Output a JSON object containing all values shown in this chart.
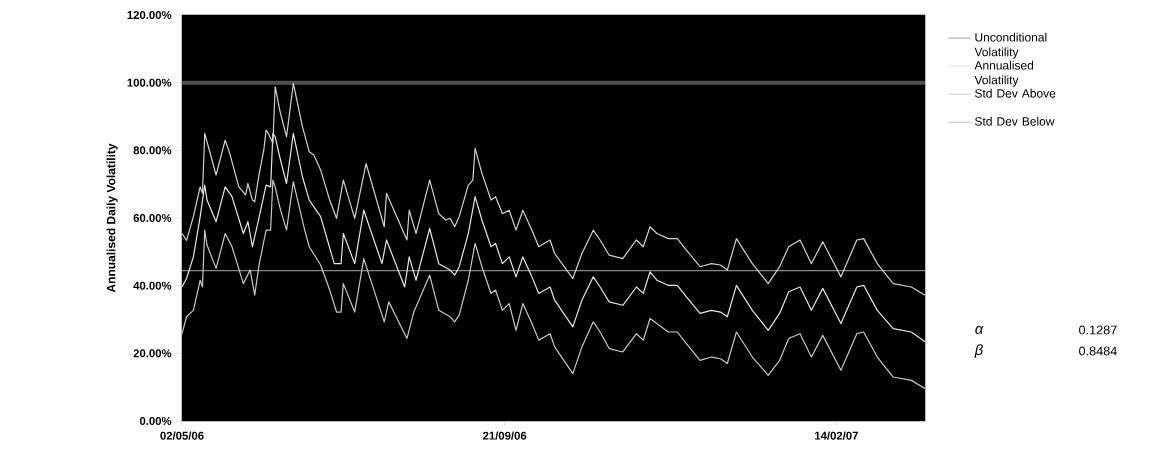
{
  "chart_data": {
    "type": "line",
    "ylabel": "Annualised Daily Volatility",
    "xlim": [
      "2006-05-02",
      "2007-03-25"
    ],
    "xticks": [
      {
        "value": "2006-05-02",
        "label": "02/05/06"
      },
      {
        "value": "2006-09-21",
        "label": "21/09/06"
      },
      {
        "value": "2007-02-14",
        "label": "14/02/07"
      }
    ],
    "ylim": [
      0,
      120
    ],
    "yticks": [
      {
        "value": 0,
        "label": "0.00%"
      },
      {
        "value": 20,
        "label": "20.00%"
      },
      {
        "value": 40,
        "label": "40.00%"
      },
      {
        "value": 60,
        "label": "60.00%"
      },
      {
        "value": 80,
        "label": "80.00%"
      },
      {
        "value": 100,
        "label": "100.00%"
      },
      {
        "value": 120,
        "label": "120.00%"
      }
    ],
    "ref_lines": [
      {
        "axis": "y",
        "value": 100,
        "color": "#505050"
      }
    ],
    "legend": "right",
    "marker": "none",
    "annotations": [
      "α",
      "0.1287",
      "β",
      "0.8484"
    ],
    "series": [
      {
        "name": "Unconditional Volatility",
        "color": "#b4b4b4",
        "x": [
          "2006-05-02",
          "2007-03-25"
        ],
        "values": [
          44.4,
          44.4
        ]
      },
      {
        "name": "Annualised Volatility",
        "color": "#e6e6e6",
        "x": [
          "2006-05-02",
          "2006-05-04",
          "2006-05-07",
          "2006-05-10",
          "2006-05-12",
          "2006-05-13",
          "2006-05-17",
          "2006-05-21",
          "2006-05-24",
          "2006-05-29",
          "2006-05-31",
          "2006-06-02",
          "2006-06-05",
          "2006-06-08",
          "2006-06-10",
          "2006-06-11",
          "2006-06-12",
          "2006-06-14",
          "2006-06-17",
          "2006-06-20",
          "2006-06-24",
          "2006-06-27",
          "2006-07-02",
          "2006-07-05",
          "2006-07-08",
          "2006-07-11",
          "2006-07-12",
          "2006-07-17",
          "2006-07-21",
          "2006-07-29",
          "2006-07-31",
          "2006-08-08",
          "2006-08-10",
          "2006-08-13",
          "2006-08-19",
          "2006-08-23",
          "2006-08-28",
          "2006-08-30",
          "2006-09-01",
          "2006-09-05",
          "2006-09-08",
          "2006-09-11",
          "2006-09-15",
          "2006-09-17",
          "2006-09-20",
          "2006-09-23",
          "2006-09-26",
          "2006-09-29",
          "2006-10-03",
          "2006-10-06",
          "2006-10-11",
          "2006-10-13",
          "2006-10-21",
          "2006-10-25",
          "2006-10-30",
          "2006-11-02",
          "2006-11-06",
          "2006-11-12",
          "2006-11-18",
          "2006-11-21",
          "2006-11-24",
          "2006-11-27",
          "2006-12-02",
          "2006-12-06",
          "2006-12-10",
          "2006-12-16",
          "2006-12-21",
          "2006-12-25",
          "2006-12-28",
          "2007-01-01",
          "2007-01-08",
          "2007-01-15",
          "2007-01-20",
          "2007-01-24",
          "2007-01-29",
          "2007-02-03",
          "2007-02-08",
          "2007-02-16",
          "2007-02-23",
          "2007-02-26",
          "2007-03-04",
          "2007-03-11",
          "2007-03-19",
          "2007-03-25"
        ],
        "values": [
          39.6,
          42.1,
          48.5,
          60.4,
          69.7,
          65.3,
          58.9,
          69.2,
          66.3,
          55.4,
          58.9,
          51.5,
          60.4,
          69.7,
          69.2,
          85.0,
          84.0,
          78.1,
          70.2,
          85.0,
          72.2,
          65.3,
          60.4,
          53.5,
          46.5,
          46.5,
          55.4,
          46.5,
          62.3,
          46.5,
          53.5,
          39.6,
          48.5,
          41.6,
          56.9,
          46.5,
          44.6,
          43.1,
          45.6,
          55.4,
          66.3,
          59.4,
          51.5,
          52.5,
          46.5,
          48.5,
          42.6,
          48.5,
          42.6,
          37.7,
          39.6,
          35.7,
          27.8,
          35.7,
          42.6,
          39.6,
          35.2,
          34.2,
          39.6,
          37.7,
          44.1,
          41.6,
          40.1,
          40.1,
          36.7,
          31.8,
          32.7,
          32.2,
          30.8,
          40.1,
          32.7,
          26.8,
          31.8,
          38.2,
          39.6,
          32.7,
          39.2,
          28.8,
          39.6,
          40.1,
          32.7,
          27.3,
          26.3,
          23.4
        ]
      },
      {
        "name": "Std Dev Above",
        "color": "#d2d2d2",
        "x": [
          "2006-05-02",
          "2006-05-04",
          "2006-05-07",
          "2006-05-10",
          "2006-05-11",
          "2006-05-12",
          "2006-05-14",
          "2006-05-17",
          "2006-05-21",
          "2006-05-23",
          "2006-05-27",
          "2006-05-30",
          "2006-05-31",
          "2006-06-02",
          "2006-06-03",
          "2006-06-05",
          "2006-06-07",
          "2006-06-08",
          "2006-06-09",
          "2006-06-11",
          "2006-06-12",
          "2006-06-14",
          "2006-06-17",
          "2006-06-20",
          "2006-06-24",
          "2006-06-27",
          "2006-06-29",
          "2006-07-02",
          "2006-07-06",
          "2006-07-09",
          "2006-07-12",
          "2006-07-17",
          "2006-07-22",
          "2006-07-30",
          "2006-07-31",
          "2006-08-09",
          "2006-08-10",
          "2006-08-13",
          "2006-08-19",
          "2006-08-23",
          "2006-08-26",
          "2006-08-28",
          "2006-08-30",
          "2006-09-01",
          "2006-09-05",
          "2006-09-07",
          "2006-09-08",
          "2006-09-11",
          "2006-09-15",
          "2006-09-17",
          "2006-09-20",
          "2006-09-23",
          "2006-09-26",
          "2006-09-29",
          "2006-10-03",
          "2006-10-06",
          "2006-10-11",
          "2006-10-13",
          "2006-10-21",
          "2006-10-25",
          "2006-10-30",
          "2006-11-02",
          "2006-11-06",
          "2006-11-12",
          "2006-11-18",
          "2006-11-21",
          "2006-11-24",
          "2006-11-27",
          "2006-12-02",
          "2006-12-06",
          "2006-12-10",
          "2006-12-16",
          "2006-12-21",
          "2006-12-25",
          "2006-12-28",
          "2007-01-01",
          "2007-01-08",
          "2007-01-15",
          "2007-01-20",
          "2007-01-24",
          "2007-01-29",
          "2007-02-03",
          "2007-02-08",
          "2007-02-16",
          "2007-02-23",
          "2007-02-26",
          "2007-03-04",
          "2007-03-11",
          "2007-03-19",
          "2007-03-25"
        ],
        "values": [
          55.4,
          53.4,
          60.4,
          69.2,
          67.3,
          85.0,
          80.1,
          72.7,
          83.0,
          79.1,
          69.2,
          66.8,
          70.2,
          65.3,
          64.8,
          73.2,
          80.1,
          86.0,
          85.0,
          82.1,
          98.8,
          91.9,
          84.0,
          99.8,
          87.0,
          79.6,
          78.6,
          74.2,
          65.3,
          59.9,
          71.2,
          59.9,
          76.1,
          57.4,
          67.3,
          53.5,
          62.3,
          55.4,
          71.2,
          61.3,
          59.4,
          59.9,
          57.4,
          60.4,
          69.7,
          71.2,
          80.6,
          73.2,
          65.3,
          66.3,
          61.3,
          62.3,
          56.4,
          62.3,
          56.4,
          51.5,
          53.5,
          49.5,
          42.1,
          49.5,
          56.4,
          53.5,
          49.0,
          48.0,
          53.5,
          51.5,
          57.4,
          55.4,
          53.9,
          53.9,
          50.5,
          45.6,
          46.5,
          46.1,
          44.6,
          53.9,
          46.5,
          40.6,
          45.6,
          51.5,
          53.5,
          46.5,
          53.0,
          42.6,
          53.5,
          53.9,
          46.5,
          40.6,
          39.6,
          37.2
        ]
      },
      {
        "name": "Std Dev Below",
        "color": "#c8c8c8",
        "x": [
          "2006-05-02",
          "2006-05-04",
          "2006-05-07",
          "2006-05-10",
          "2006-05-11",
          "2006-05-12",
          "2006-05-13",
          "2006-05-17",
          "2006-05-21",
          "2006-05-24",
          "2006-05-29",
          "2006-06-01",
          "2006-06-03",
          "2006-06-05",
          "2006-06-08",
          "2006-06-10",
          "2006-06-11",
          "2006-06-12",
          "2006-06-14",
          "2006-06-17",
          "2006-06-20",
          "2006-06-25",
          "2006-06-27",
          "2006-07-02",
          "2006-07-06",
          "2006-07-09",
          "2006-07-11",
          "2006-07-12",
          "2006-07-17",
          "2006-07-21",
          "2006-07-30",
          "2006-08-01",
          "2006-08-09",
          "2006-08-12",
          "2006-08-19",
          "2006-08-23",
          "2006-08-28",
          "2006-08-30",
          "2006-09-01",
          "2006-09-05",
          "2006-09-08",
          "2006-09-11",
          "2006-09-15",
          "2006-09-17",
          "2006-09-20",
          "2006-09-23",
          "2006-09-26",
          "2006-09-29",
          "2006-10-03",
          "2006-10-06",
          "2006-10-11",
          "2006-10-13",
          "2006-10-21",
          "2006-10-25",
          "2006-10-30",
          "2006-11-02",
          "2006-11-06",
          "2006-11-12",
          "2006-11-18",
          "2006-11-21",
          "2006-11-24",
          "2006-12-02",
          "2006-12-06",
          "2006-12-10",
          "2006-12-16",
          "2006-12-21",
          "2006-12-25",
          "2006-12-28",
          "2007-01-01",
          "2007-01-08",
          "2007-01-15",
          "2007-01-20",
          "2007-01-24",
          "2007-01-29",
          "2007-02-03",
          "2007-02-08",
          "2007-02-16",
          "2007-02-23",
          "2007-02-26",
          "2007-03-04",
          "2007-03-11",
          "2007-03-19",
          "2007-03-25"
        ],
        "values": [
          25.8,
          30.8,
          32.7,
          41.6,
          39.6,
          56.4,
          52.0,
          45.1,
          55.4,
          51.5,
          40.6,
          44.6,
          37.2,
          46.5,
          56.4,
          56.4,
          71.2,
          69.2,
          63.3,
          56.4,
          70.7,
          56.4,
          51.5,
          46.1,
          38.7,
          32.2,
          32.2,
          40.6,
          32.2,
          48.0,
          29.3,
          35.2,
          24.4,
          32.2,
          43.1,
          32.7,
          30.8,
          29.3,
          31.3,
          41.6,
          52.5,
          45.6,
          37.7,
          38.7,
          32.7,
          34.7,
          26.8,
          34.7,
          28.8,
          23.9,
          25.8,
          21.9,
          14.0,
          21.9,
          29.3,
          26.3,
          21.4,
          20.4,
          25.8,
          23.9,
          30.3,
          26.3,
          26.3,
          22.9,
          17.9,
          18.9,
          18.4,
          17.0,
          26.3,
          18.9,
          13.5,
          17.9,
          24.4,
          25.8,
          18.9,
          25.3,
          15.0,
          25.8,
          26.3,
          18.9,
          13.0,
          12.0,
          9.6
        ]
      }
    ]
  }
}
